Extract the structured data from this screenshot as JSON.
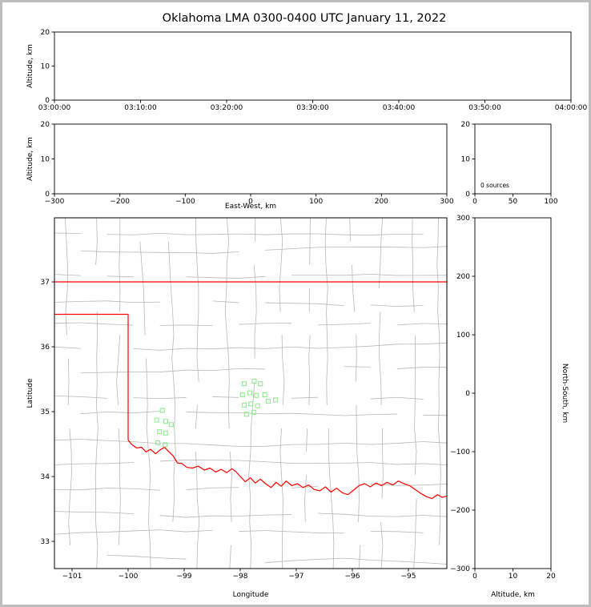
{
  "title": "Oklahoma LMA 0300-0400 UTC January 11, 2022",
  "colors": {
    "state_border": "#ff0000",
    "county_line": "#b8b8b8",
    "station_marker": "#90ee90",
    "axis": "#000000",
    "background": "#ffffff",
    "frame": "#bdbdbd"
  },
  "chart_data": [
    {
      "id": "time_altitude",
      "type": "scatter",
      "xlabel": "",
      "ylabel": "Altitude, km",
      "xticks": [
        "03:00:00",
        "03:10:00",
        "03:20:00",
        "03:30:00",
        "03:40:00",
        "03:50:00",
        "04:00:00"
      ],
      "yticks": [
        0,
        10,
        20
      ],
      "ylim": [
        0,
        20
      ],
      "points": []
    },
    {
      "id": "eastwest_altitude",
      "type": "scatter",
      "xlabel": "East-West, km",
      "ylabel": "Altitude, km",
      "xlim": [
        -300,
        300
      ],
      "ylim": [
        0,
        20
      ],
      "xticks": [
        -300,
        -200,
        -100,
        0,
        100,
        200,
        300
      ],
      "yticks": [
        0,
        10,
        20
      ],
      "points": []
    },
    {
      "id": "source_histogram",
      "type": "line",
      "annotation": "0 sources",
      "xlim": [
        0,
        100
      ],
      "ylim": [
        0,
        20
      ],
      "xticks": [
        0,
        50,
        100
      ],
      "yticks": [
        0,
        10,
        20
      ],
      "points": []
    },
    {
      "id": "plan_view",
      "type": "scatter",
      "xlabel": "Longitude",
      "ylabel": "Latitude",
      "xlim": [
        -101.314,
        -94.314
      ],
      "ylim": [
        32.581,
        37.988
      ],
      "xticks": [
        -101,
        -100,
        -99,
        -98,
        -97,
        -96,
        -95
      ],
      "yticks": [
        33,
        34,
        35,
        36,
        37
      ],
      "stations": [
        [
          -99.39,
          35.02
        ],
        [
          -99.49,
          34.87
        ],
        [
          -99.33,
          34.85
        ],
        [
          -99.23,
          34.8
        ],
        [
          -99.44,
          34.69
        ],
        [
          -99.33,
          34.67
        ],
        [
          -99.47,
          34.52
        ],
        [
          -99.34,
          34.49
        ],
        [
          -97.93,
          35.43
        ],
        [
          -97.75,
          35.47
        ],
        [
          -97.64,
          35.43
        ],
        [
          -97.96,
          35.26
        ],
        [
          -97.83,
          35.29
        ],
        [
          -97.71,
          35.25
        ],
        [
          -97.56,
          35.26
        ],
        [
          -97.93,
          35.1
        ],
        [
          -97.81,
          35.12
        ],
        [
          -97.69,
          35.09
        ],
        [
          -97.5,
          35.16
        ],
        [
          -97.37,
          35.18
        ],
        [
          -97.89,
          34.96
        ],
        [
          -97.76,
          34.99
        ]
      ],
      "boundary": {
        "north": [
          [
            -101.314,
            37.0
          ],
          [
            -94.314,
            37.0
          ]
        ],
        "panhandle": [
          [
            -101.314,
            36.5
          ],
          [
            -100.0,
            36.5
          ],
          [
            -100.0,
            34.56
          ]
        ],
        "red_river": [
          [
            -100.0,
            34.56
          ],
          [
            -99.93,
            34.49
          ],
          [
            -99.85,
            34.44
          ],
          [
            -99.76,
            34.45
          ],
          [
            -99.68,
            34.38
          ],
          [
            -99.6,
            34.42
          ],
          [
            -99.51,
            34.35
          ],
          [
            -99.43,
            34.41
          ],
          [
            -99.35,
            34.45
          ],
          [
            -99.27,
            34.38
          ],
          [
            -99.2,
            34.32
          ],
          [
            -99.12,
            34.21
          ],
          [
            -99.04,
            34.2
          ],
          [
            -98.95,
            34.14
          ],
          [
            -98.85,
            34.13
          ],
          [
            -98.75,
            34.16
          ],
          [
            -98.64,
            34.1
          ],
          [
            -98.54,
            34.13
          ],
          [
            -98.44,
            34.07
          ],
          [
            -98.34,
            34.11
          ],
          [
            -98.24,
            34.06
          ],
          [
            -98.15,
            34.12
          ],
          [
            -98.07,
            34.07
          ],
          [
            -98.0,
            34.0
          ],
          [
            -97.91,
            33.92
          ],
          [
            -97.82,
            33.98
          ],
          [
            -97.73,
            33.9
          ],
          [
            -97.64,
            33.96
          ],
          [
            -97.55,
            33.89
          ],
          [
            -97.45,
            33.83
          ],
          [
            -97.36,
            33.91
          ],
          [
            -97.27,
            33.85
          ],
          [
            -97.18,
            33.93
          ],
          [
            -97.08,
            33.86
          ],
          [
            -96.98,
            33.89
          ],
          [
            -96.88,
            33.83
          ],
          [
            -96.78,
            33.87
          ],
          [
            -96.68,
            33.8
          ],
          [
            -96.58,
            33.78
          ],
          [
            -96.48,
            33.84
          ],
          [
            -96.38,
            33.76
          ],
          [
            -96.28,
            33.82
          ],
          [
            -96.18,
            33.75
          ],
          [
            -96.08,
            33.72
          ],
          [
            -95.98,
            33.79
          ],
          [
            -95.88,
            33.86
          ],
          [
            -95.78,
            33.89
          ],
          [
            -95.68,
            33.84
          ],
          [
            -95.58,
            33.9
          ],
          [
            -95.48,
            33.86
          ],
          [
            -95.38,
            33.91
          ],
          [
            -95.28,
            33.87
          ],
          [
            -95.18,
            33.93
          ],
          [
            -95.08,
            33.89
          ],
          [
            -94.98,
            33.86
          ],
          [
            -94.88,
            33.8
          ],
          [
            -94.78,
            33.74
          ],
          [
            -94.68,
            33.69
          ],
          [
            -94.58,
            33.66
          ],
          [
            -94.48,
            33.72
          ],
          [
            -94.4,
            33.68
          ],
          [
            -94.314,
            33.7
          ]
        ]
      }
    },
    {
      "id": "northsouth_altitude",
      "type": "scatter",
      "xlabel": "Altitude, km",
      "ylabel_right": "North-South, km",
      "xlim": [
        0,
        20
      ],
      "ylim": [
        -300,
        300
      ],
      "xticks": [
        0,
        10,
        20
      ],
      "yticks": [
        300,
        200,
        100,
        0,
        -100,
        -200,
        -300
      ],
      "points": []
    }
  ]
}
